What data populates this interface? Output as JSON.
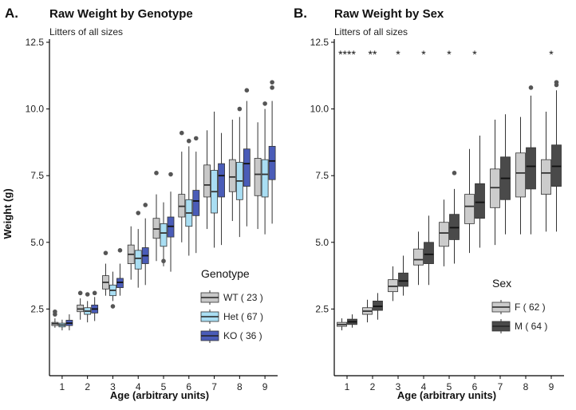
{
  "chart_data": [
    {
      "type": "boxplot",
      "panel_label": "A.",
      "title": "Raw Weight by Genotype",
      "subtitle": "Litters of all sizes",
      "xlabel": "Age (arbitrary units)",
      "ylabel": "Weight (g)",
      "ylim": [
        0,
        12.5
      ],
      "yticks": [
        "2.5",
        "5.0",
        "7.5",
        "10.0",
        "12.5"
      ],
      "categories": [
        "1",
        "2",
        "3",
        "4",
        "5",
        "6",
        "7",
        "8",
        "9"
      ],
      "legend": {
        "title": "Genotype",
        "items": [
          "WT ( 23 )",
          "Het ( 67 )",
          "KO ( 36 )"
        ]
      },
      "series": [
        {
          "color": "#c8c8c8",
          "boxes": [
            {
              "min": 1.8,
              "q1": 1.88,
              "med": 1.95,
              "q3": 2.0,
              "max": 2.15,
              "out": [
                2.3,
                2.4
              ]
            },
            {
              "min": 2.1,
              "q1": 2.4,
              "med": 2.5,
              "q3": 2.65,
              "max": 2.9,
              "out": [
                3.1
              ]
            },
            {
              "min": 3.0,
              "q1": 3.25,
              "med": 3.5,
              "q3": 3.75,
              "max": 4.2,
              "out": [
                4.6
              ]
            },
            {
              "min": 3.6,
              "q1": 4.2,
              "med": 4.55,
              "q3": 4.9,
              "max": 5.6,
              "out": []
            },
            {
              "min": 4.3,
              "q1": 5.15,
              "med": 5.5,
              "q3": 5.9,
              "max": 6.8,
              "out": [
                7.6
              ]
            },
            {
              "min": 5.0,
              "q1": 5.95,
              "med": 6.35,
              "q3": 6.8,
              "max": 8.4,
              "out": [
                9.1
              ]
            },
            {
              "min": 5.5,
              "q1": 6.7,
              "med": 7.15,
              "q3": 7.9,
              "max": 9.2,
              "out": []
            },
            {
              "min": 5.8,
              "q1": 6.9,
              "med": 7.45,
              "q3": 8.1,
              "max": 9.6,
              "out": []
            },
            {
              "min": 5.5,
              "q1": 6.75,
              "med": 7.55,
              "q3": 8.15,
              "max": 9.5,
              "out": []
            }
          ]
        },
        {
          "color": "#a9def3",
          "boxes": [
            {
              "min": 1.7,
              "q1": 1.83,
              "med": 1.9,
              "q3": 1.97,
              "max": 2.1,
              "out": []
            },
            {
              "min": 2.0,
              "q1": 2.3,
              "med": 2.42,
              "q3": 2.55,
              "max": 2.8,
              "out": [
                3.05
              ]
            },
            {
              "min": 2.8,
              "q1": 3.0,
              "med": 3.2,
              "q3": 3.4,
              "max": 3.9,
              "out": [
                2.6
              ]
            },
            {
              "min": 3.3,
              "q1": 4.0,
              "med": 4.4,
              "q3": 4.7,
              "max": 5.5,
              "out": [
                6.1
              ]
            },
            {
              "min": 4.1,
              "q1": 4.85,
              "med": 5.35,
              "q3": 5.7,
              "max": 6.5,
              "out": [
                4.3
              ]
            },
            {
              "min": 4.5,
              "q1": 5.6,
              "med": 6.1,
              "q3": 6.6,
              "max": 8.6,
              "out": [
                8.8
              ]
            },
            {
              "min": 4.8,
              "q1": 6.1,
              "med": 6.9,
              "q3": 7.7,
              "max": 9.9,
              "out": []
            },
            {
              "min": 5.2,
              "q1": 6.6,
              "med": 7.3,
              "q3": 8.0,
              "max": 9.7,
              "out": [
                10.0
              ]
            },
            {
              "min": 5.3,
              "q1": 6.7,
              "med": 7.55,
              "q3": 8.1,
              "max": 10.0,
              "out": [
                10.2
              ]
            }
          ]
        },
        {
          "color": "#4a5cb8",
          "boxes": [
            {
              "min": 1.7,
              "q1": 1.88,
              "med": 1.97,
              "q3": 2.08,
              "max": 2.3,
              "out": []
            },
            {
              "min": 2.05,
              "q1": 2.35,
              "med": 2.5,
              "q3": 2.65,
              "max": 2.95,
              "out": [
                3.1
              ]
            },
            {
              "min": 3.0,
              "q1": 3.3,
              "med": 3.5,
              "q3": 3.65,
              "max": 4.2,
              "out": [
                4.7
              ]
            },
            {
              "min": 3.4,
              "q1": 4.2,
              "med": 4.5,
              "q3": 4.8,
              "max": 5.9,
              "out": [
                6.4
              ]
            },
            {
              "min": 3.9,
              "q1": 5.2,
              "med": 5.6,
              "q3": 5.95,
              "max": 6.9,
              "out": [
                7.55
              ]
            },
            {
              "min": 4.6,
              "q1": 6.0,
              "med": 6.55,
              "q3": 6.95,
              "max": 8.4,
              "out": [
                8.9
              ]
            },
            {
              "min": 4.9,
              "q1": 6.7,
              "med": 7.5,
              "q3": 7.95,
              "max": 9.1,
              "out": []
            },
            {
              "min": 5.6,
              "q1": 7.1,
              "med": 7.95,
              "q3": 8.5,
              "max": 10.3,
              "out": [
                10.7
              ]
            },
            {
              "min": 5.7,
              "q1": 7.35,
              "med": 8.05,
              "q3": 8.6,
              "max": 10.3,
              "out": [
                10.8,
                11.0
              ]
            }
          ]
        }
      ]
    },
    {
      "type": "boxplot",
      "panel_label": "B.",
      "title": "Raw Weight by Sex",
      "subtitle": "Litters of all sizes",
      "xlabel": "Age (arbitrary units)",
      "ylabel": "",
      "ylim": [
        0,
        12.5
      ],
      "yticks": [
        "2.5",
        "5.0",
        "7.5",
        "10.0",
        "12.5"
      ],
      "categories": [
        "1",
        "2",
        "3",
        "4",
        "5",
        "6",
        "7",
        "8",
        "9"
      ],
      "significance": [
        "****",
        "**",
        "*",
        "*",
        "*",
        "*",
        "",
        "",
        "*"
      ],
      "legend": {
        "title": "Sex",
        "items": [
          "F ( 62 )",
          "M ( 64 )"
        ]
      },
      "series": [
        {
          "color": "#cccccc",
          "boxes": [
            {
              "min": 1.7,
              "q1": 1.85,
              "med": 1.92,
              "q3": 2.0,
              "max": 2.15,
              "out": []
            },
            {
              "min": 2.0,
              "q1": 2.3,
              "med": 2.42,
              "q3": 2.55,
              "max": 2.85,
              "out": []
            },
            {
              "min": 2.8,
              "q1": 3.15,
              "med": 3.35,
              "q3": 3.6,
              "max": 4.1,
              "out": []
            },
            {
              "min": 3.4,
              "q1": 4.15,
              "med": 4.35,
              "q3": 4.75,
              "max": 5.4,
              "out": []
            },
            {
              "min": 4.1,
              "q1": 4.85,
              "med": 5.35,
              "q3": 5.75,
              "max": 6.6,
              "out": []
            },
            {
              "min": 4.6,
              "q1": 5.7,
              "med": 6.35,
              "q3": 6.8,
              "max": 8.5,
              "out": []
            },
            {
              "min": 4.9,
              "q1": 6.3,
              "med": 7.05,
              "q3": 7.75,
              "max": 9.6,
              "out": []
            },
            {
              "min": 5.3,
              "q1": 6.7,
              "med": 7.6,
              "q3": 8.35,
              "max": 9.7,
              "out": []
            },
            {
              "min": 5.4,
              "q1": 6.8,
              "med": 7.6,
              "q3": 8.1,
              "max": 9.9,
              "out": []
            }
          ]
        },
        {
          "color": "#4a4a4a",
          "boxes": [
            {
              "min": 1.8,
              "q1": 1.92,
              "med": 2.02,
              "q3": 2.12,
              "max": 2.3,
              "out": []
            },
            {
              "min": 2.1,
              "q1": 2.45,
              "med": 2.6,
              "q3": 2.8,
              "max": 3.1,
              "out": []
            },
            {
              "min": 3.0,
              "q1": 3.35,
              "med": 3.55,
              "q3": 3.85,
              "max": 4.5,
              "out": []
            },
            {
              "min": 3.4,
              "q1": 4.2,
              "med": 4.55,
              "q3": 5.0,
              "max": 6.0,
              "out": []
            },
            {
              "min": 4.2,
              "q1": 5.1,
              "med": 5.55,
              "q3": 6.05,
              "max": 7.0,
              "out": [
                7.6
              ]
            },
            {
              "min": 4.8,
              "q1": 5.9,
              "med": 6.5,
              "q3": 7.2,
              "max": 9.0,
              "out": []
            },
            {
              "min": 5.3,
              "q1": 6.6,
              "med": 7.4,
              "q3": 8.2,
              "max": 9.8,
              "out": []
            },
            {
              "min": 5.3,
              "q1": 7.0,
              "med": 7.85,
              "q3": 8.55,
              "max": 10.5,
              "out": [
                10.8
              ]
            },
            {
              "min": 5.4,
              "q1": 7.1,
              "med": 7.85,
              "q3": 8.65,
              "max": 10.7,
              "out": [
                10.9,
                11.0
              ]
            }
          ]
        }
      ]
    }
  ]
}
